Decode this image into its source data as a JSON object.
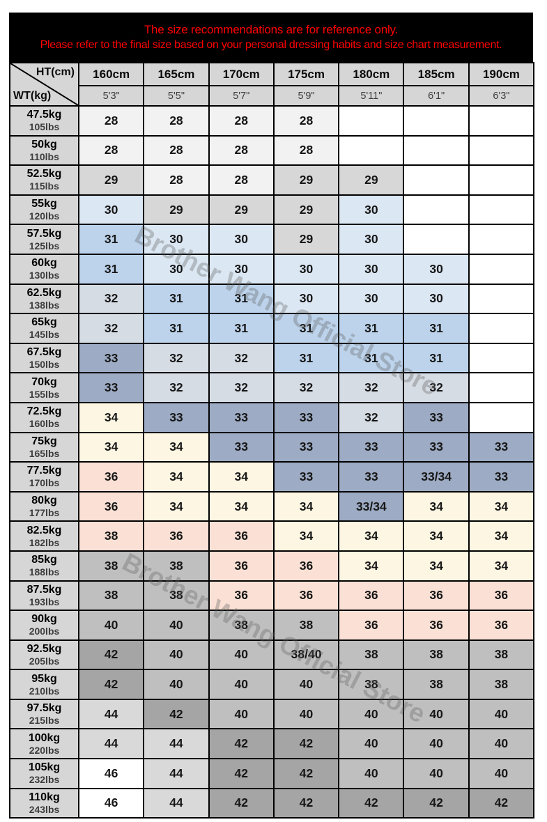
{
  "banner": {
    "line1": "The size recommendations are for reference only.",
    "line2": "Please refer to the final size based on your personal dressing habits and size chart measurement."
  },
  "corner": {
    "top_right": "HT(cm)",
    "bottom_left": "WT(kg)"
  },
  "watermark": {
    "text": "Brother Wang Official Store"
  },
  "colors": {
    "banner_bg": "#000000",
    "banner_text": "#ff0000",
    "header_bg": "#d6d6d6",
    "cells": {
      "28": "#f2f2f2",
      "29": "#d7d7d7",
      "30": "#dbe7f3",
      "31": "#bcd3eb",
      "32": "#d6dce4",
      "33": "#9dabc4",
      "34": "#fdf6e2",
      "36": "#fbe1d5",
      "38": "#bfbfbf",
      "40": "#bfbfbf",
      "42": "#a5a5a5",
      "44": "#d9d9d9",
      "46": "#ffffff",
      "empty": "#ffffff"
    }
  },
  "table": {
    "cell_format": [
      "value",
      "color_key"
    ],
    "columns": [
      {
        "cm": "160cm",
        "ft": "5'3\""
      },
      {
        "cm": "165cm",
        "ft": "5'5\""
      },
      {
        "cm": "170cm",
        "ft": "5'7\""
      },
      {
        "cm": "175cm",
        "ft": "5'9\""
      },
      {
        "cm": "180cm",
        "ft": "5'11\""
      },
      {
        "cm": "185cm",
        "ft": "6'1\""
      },
      {
        "cm": "190cm",
        "ft": "6'3\""
      }
    ],
    "rows": [
      {
        "kg": "47.5kg",
        "lbs": "105lbs",
        "cells": [
          [
            "28",
            "28"
          ],
          [
            "28",
            "28"
          ],
          [
            "28",
            "28"
          ],
          [
            "28",
            "28"
          ],
          [
            "",
            "empty"
          ],
          [
            "",
            "empty"
          ],
          [
            "",
            "empty"
          ]
        ]
      },
      {
        "kg": "50kg",
        "lbs": "110lbs",
        "cells": [
          [
            "28",
            "28"
          ],
          [
            "28",
            "28"
          ],
          [
            "28",
            "28"
          ],
          [
            "28",
            "28"
          ],
          [
            "",
            "empty"
          ],
          [
            "",
            "empty"
          ],
          [
            "",
            "empty"
          ]
        ]
      },
      {
        "kg": "52.5kg",
        "lbs": "115lbs",
        "cells": [
          [
            "29",
            "29"
          ],
          [
            "28",
            "28"
          ],
          [
            "28",
            "28"
          ],
          [
            "29",
            "29"
          ],
          [
            "29",
            "29"
          ],
          [
            "",
            "empty"
          ],
          [
            "",
            "empty"
          ]
        ]
      },
      {
        "kg": "55kg",
        "lbs": "120lbs",
        "cells": [
          [
            "30",
            "30"
          ],
          [
            "29",
            "29"
          ],
          [
            "29",
            "29"
          ],
          [
            "29",
            "29"
          ],
          [
            "30",
            "30"
          ],
          [
            "",
            "empty"
          ],
          [
            "",
            "empty"
          ]
        ]
      },
      {
        "kg": "57.5kg",
        "lbs": "125lbs",
        "cells": [
          [
            "31",
            "31"
          ],
          [
            "30",
            "30"
          ],
          [
            "30",
            "30"
          ],
          [
            "29",
            "29"
          ],
          [
            "30",
            "30"
          ],
          [
            "",
            "empty"
          ],
          [
            "",
            "empty"
          ]
        ]
      },
      {
        "kg": "60kg",
        "lbs": "130lbs",
        "cells": [
          [
            "31",
            "31"
          ],
          [
            "30",
            "30"
          ],
          [
            "30",
            "30"
          ],
          [
            "30",
            "30"
          ],
          [
            "30",
            "30"
          ],
          [
            "30",
            "30"
          ],
          [
            "",
            "empty"
          ]
        ]
      },
      {
        "kg": "62.5kg",
        "lbs": "138lbs",
        "cells": [
          [
            "32",
            "32"
          ],
          [
            "31",
            "31"
          ],
          [
            "31",
            "31"
          ],
          [
            "30",
            "30"
          ],
          [
            "30",
            "30"
          ],
          [
            "30",
            "30"
          ],
          [
            "",
            "empty"
          ]
        ]
      },
      {
        "kg": "65kg",
        "lbs": "145lbs",
        "cells": [
          [
            "32",
            "32"
          ],
          [
            "31",
            "31"
          ],
          [
            "31",
            "31"
          ],
          [
            "31",
            "31"
          ],
          [
            "31",
            "31"
          ],
          [
            "31",
            "31"
          ],
          [
            "",
            "empty"
          ]
        ]
      },
      {
        "kg": "67.5kg",
        "lbs": "150lbs",
        "cells": [
          [
            "33",
            "33"
          ],
          [
            "32",
            "32"
          ],
          [
            "32",
            "32"
          ],
          [
            "31",
            "31"
          ],
          [
            "31",
            "31"
          ],
          [
            "31",
            "31"
          ],
          [
            "",
            "empty"
          ]
        ]
      },
      {
        "kg": "70kg",
        "lbs": "155lbs",
        "cells": [
          [
            "33",
            "33"
          ],
          [
            "32",
            "32"
          ],
          [
            "32",
            "32"
          ],
          [
            "32",
            "32"
          ],
          [
            "32",
            "32"
          ],
          [
            "32",
            "32"
          ],
          [
            "",
            "empty"
          ]
        ]
      },
      {
        "kg": "72.5kg",
        "lbs": "160lbs",
        "cells": [
          [
            "34",
            "34"
          ],
          [
            "33",
            "33"
          ],
          [
            "33",
            "33"
          ],
          [
            "33",
            "33"
          ],
          [
            "32",
            "32"
          ],
          [
            "33",
            "33"
          ],
          [
            "",
            "empty"
          ]
        ]
      },
      {
        "kg": "75kg",
        "lbs": "165lbs",
        "cells": [
          [
            "34",
            "34"
          ],
          [
            "34",
            "34"
          ],
          [
            "33",
            "33"
          ],
          [
            "33",
            "33"
          ],
          [
            "33",
            "33"
          ],
          [
            "33",
            "33"
          ],
          [
            "33",
            "33"
          ]
        ]
      },
      {
        "kg": "77.5kg",
        "lbs": "170lbs",
        "cells": [
          [
            "36",
            "36"
          ],
          [
            "34",
            "34"
          ],
          [
            "34",
            "34"
          ],
          [
            "33",
            "33"
          ],
          [
            "33",
            "33"
          ],
          [
            "33/34",
            "33"
          ],
          [
            "33",
            "33"
          ]
        ]
      },
      {
        "kg": "80kg",
        "lbs": "177lbs",
        "cells": [
          [
            "36",
            "36"
          ],
          [
            "34",
            "34"
          ],
          [
            "34",
            "34"
          ],
          [
            "34",
            "34"
          ],
          [
            "33/34",
            "33"
          ],
          [
            "34",
            "34"
          ],
          [
            "34",
            "34"
          ]
        ]
      },
      {
        "kg": "82.5kg",
        "lbs": "182lbs",
        "cells": [
          [
            "38",
            "36"
          ],
          [
            "36",
            "36"
          ],
          [
            "36",
            "36"
          ],
          [
            "34",
            "34"
          ],
          [
            "34",
            "34"
          ],
          [
            "34",
            "34"
          ],
          [
            "34",
            "34"
          ]
        ]
      },
      {
        "kg": "85kg",
        "lbs": "188lbs",
        "cells": [
          [
            "38",
            "38"
          ],
          [
            "38",
            "38"
          ],
          [
            "36",
            "36"
          ],
          [
            "36",
            "36"
          ],
          [
            "34",
            "34"
          ],
          [
            "34",
            "34"
          ],
          [
            "34",
            "34"
          ]
        ]
      },
      {
        "kg": "87.5kg",
        "lbs": "193lbs",
        "cells": [
          [
            "38",
            "38"
          ],
          [
            "38",
            "38"
          ],
          [
            "36",
            "36"
          ],
          [
            "36",
            "36"
          ],
          [
            "36",
            "36"
          ],
          [
            "36",
            "36"
          ],
          [
            "36",
            "36"
          ]
        ]
      },
      {
        "kg": "90kg",
        "lbs": "200lbs",
        "cells": [
          [
            "40",
            "40"
          ],
          [
            "40",
            "40"
          ],
          [
            "38",
            "38"
          ],
          [
            "38",
            "38"
          ],
          [
            "36",
            "36"
          ],
          [
            "36",
            "36"
          ],
          [
            "36",
            "36"
          ]
        ]
      },
      {
        "kg": "92.5kg",
        "lbs": "205lbs",
        "cells": [
          [
            "42",
            "42"
          ],
          [
            "40",
            "40"
          ],
          [
            "40",
            "40"
          ],
          [
            "38/40",
            "40"
          ],
          [
            "38",
            "38"
          ],
          [
            "38",
            "38"
          ],
          [
            "38",
            "38"
          ]
        ]
      },
      {
        "kg": "95kg",
        "lbs": "210lbs",
        "cells": [
          [
            "42",
            "42"
          ],
          [
            "40",
            "40"
          ],
          [
            "40",
            "40"
          ],
          [
            "40",
            "40"
          ],
          [
            "38",
            "38"
          ],
          [
            "38",
            "38"
          ],
          [
            "38",
            "38"
          ]
        ]
      },
      {
        "kg": "97.5kg",
        "lbs": "215lbs",
        "cells": [
          [
            "44",
            "44"
          ],
          [
            "42",
            "42"
          ],
          [
            "40",
            "40"
          ],
          [
            "40",
            "40"
          ],
          [
            "40",
            "40"
          ],
          [
            "40",
            "40"
          ],
          [
            "40",
            "40"
          ]
        ]
      },
      {
        "kg": "100kg",
        "lbs": "220lbs",
        "cells": [
          [
            "44",
            "44"
          ],
          [
            "44",
            "44"
          ],
          [
            "42",
            "42"
          ],
          [
            "42",
            "42"
          ],
          [
            "40",
            "40"
          ],
          [
            "40",
            "40"
          ],
          [
            "40",
            "40"
          ]
        ]
      },
      {
        "kg": "105kg",
        "lbs": "232lbs",
        "cells": [
          [
            "46",
            "46"
          ],
          [
            "44",
            "44"
          ],
          [
            "42",
            "42"
          ],
          [
            "42",
            "42"
          ],
          [
            "40",
            "40"
          ],
          [
            "40",
            "40"
          ],
          [
            "40",
            "40"
          ]
        ]
      },
      {
        "kg": "110kg",
        "lbs": "243lbs",
        "cells": [
          [
            "46",
            "46"
          ],
          [
            "44",
            "44"
          ],
          [
            "42",
            "42"
          ],
          [
            "42",
            "42"
          ],
          [
            "42",
            "42"
          ],
          [
            "42",
            "42"
          ],
          [
            "42",
            "42"
          ]
        ]
      }
    ]
  }
}
